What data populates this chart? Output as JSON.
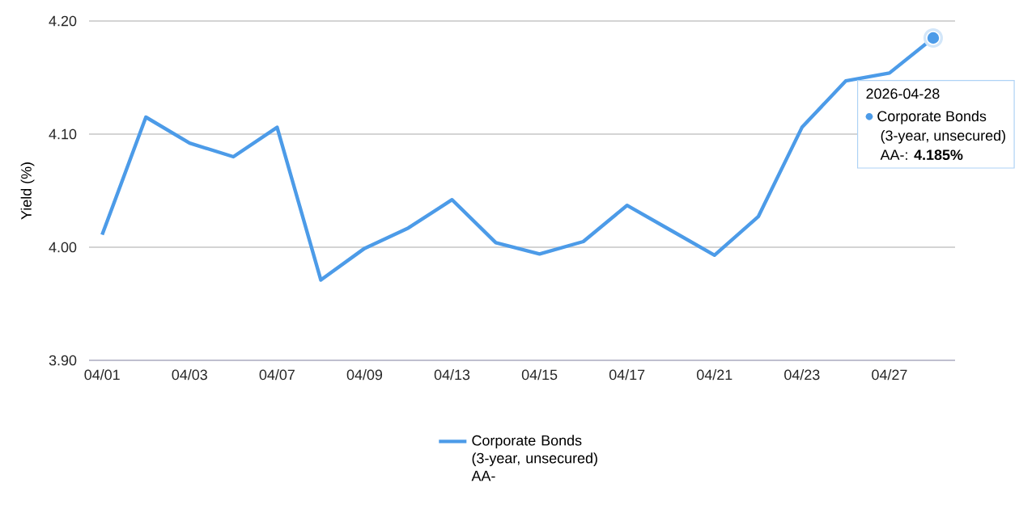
{
  "chart_data": {
    "type": "line",
    "ylabel": "Yield (%)",
    "categories": [
      "04/01",
      null,
      "04/03",
      null,
      "04/07",
      null,
      "04/09",
      null,
      "04/13",
      null,
      "04/15",
      null,
      "04/17",
      null,
      "04/21",
      null,
      "04/23",
      null,
      "04/27",
      null
    ],
    "series": [
      {
        "name": "Corporate Bonds (3-year, unsecured) AA-",
        "color": "#4c9be8",
        "values": [
          4.011,
          4.115,
          4.092,
          4.08,
          4.106,
          3.971,
          3.999,
          4.017,
          4.042,
          4.004,
          3.994,
          4.005,
          4.037,
          4.015,
          3.993,
          4.027,
          4.106,
          4.147,
          4.154,
          4.185
        ]
      }
    ],
    "ylim": [
      3.9,
      4.2
    ],
    "yticks": [
      {
        "value": 3.9,
        "label": "3.90"
      },
      {
        "value": 4.0,
        "label": "4.00"
      },
      {
        "value": 4.1,
        "label": "4.10"
      },
      {
        "value": 4.2,
        "label": "4.20"
      }
    ],
    "grid": "y",
    "legend": "bottom",
    "marker": "none",
    "line_style": "solid",
    "annotations": [
      "2026-04-28",
      "Corporate Bonds",
      "(3-year, unsecured)",
      "AA-: **4.185%**"
    ]
  }
}
